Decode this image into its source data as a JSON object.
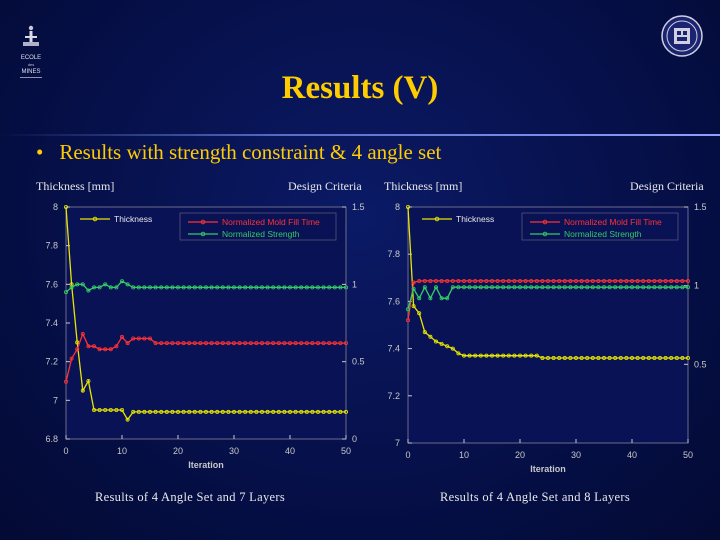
{
  "slide": {
    "title": "Results (V)",
    "bullet_marker": "•",
    "bullet_text": "Results with strength constraint & 4 angle set",
    "logo_text": [
      "ECOLE",
      "des",
      "MINES"
    ],
    "colors": {
      "background": "#06104a",
      "title": "#ffcc00",
      "text": "#e8e8e8"
    }
  },
  "chart_data": [
    {
      "type": "line",
      "caption": "Results of 4 Angle Set and 7 Layers",
      "left_axis_title": "Thickness [mm]",
      "right_axis_title": "Design Criteria",
      "xlabel": "Iteration",
      "xlim": [
        0,
        50
      ],
      "xticks": [
        "0",
        "10",
        "20",
        "30",
        "40",
        "50"
      ],
      "ylim": [
        6.8,
        8
      ],
      "yticks": [
        "8",
        "7.8",
        "7.6",
        "7.4",
        "7.2",
        "7",
        "6.8"
      ],
      "y2lim": [
        0,
        1.5
      ],
      "y2ticks": [
        "1.5",
        "1",
        "0.5",
        "0"
      ],
      "legend": [
        "Thickness",
        "Normalized Mold Fill Time",
        "Normalized Strength"
      ],
      "series": [
        {
          "name": "Thickness",
          "axis": "left",
          "color": "#e6e600",
          "x": [
            0,
            1,
            2,
            3,
            4,
            5,
            6,
            7,
            8,
            9,
            10,
            11,
            12,
            13,
            14,
            15,
            16,
            17,
            18,
            19,
            20,
            21,
            22,
            23,
            24,
            25,
            26,
            27,
            28,
            29,
            30,
            31,
            32,
            33,
            34,
            35,
            36,
            37,
            38,
            39,
            40,
            41,
            42,
            43,
            44,
            45,
            46,
            47,
            48,
            49,
            50
          ],
          "y": [
            8.0,
            7.6,
            7.3,
            7.05,
            7.1,
            6.95,
            6.95,
            6.95,
            6.95,
            6.95,
            6.95,
            6.9,
            6.94,
            6.94,
            6.94,
            6.94,
            6.94,
            6.94,
            6.94,
            6.94,
            6.94,
            6.94,
            6.94,
            6.94,
            6.94,
            6.94,
            6.94,
            6.94,
            6.94,
            6.94,
            6.94,
            6.94,
            6.94,
            6.94,
            6.94,
            6.94,
            6.94,
            6.94,
            6.94,
            6.94,
            6.94,
            6.94,
            6.94,
            6.94,
            6.94,
            6.94,
            6.94,
            6.94,
            6.94,
            6.94,
            6.94
          ]
        },
        {
          "name": "Normalized Mold Fill Time",
          "axis": "right",
          "color": "#ff3333",
          "x": [
            0,
            1,
            2,
            3,
            4,
            5,
            6,
            7,
            8,
            9,
            10,
            11,
            12,
            13,
            14,
            15,
            16,
            17,
            18,
            19,
            20,
            21,
            22,
            23,
            24,
            25,
            26,
            27,
            28,
            29,
            30,
            31,
            32,
            33,
            34,
            35,
            36,
            37,
            38,
            39,
            40,
            41,
            42,
            43,
            44,
            45,
            46,
            47,
            48,
            49,
            50
          ],
          "y": [
            0.37,
            0.52,
            0.58,
            0.68,
            0.6,
            0.6,
            0.58,
            0.58,
            0.58,
            0.6,
            0.66,
            0.62,
            0.65,
            0.65,
            0.65,
            0.65,
            0.62,
            0.62,
            0.62,
            0.62,
            0.62,
            0.62,
            0.62,
            0.62,
            0.62,
            0.62,
            0.62,
            0.62,
            0.62,
            0.62,
            0.62,
            0.62,
            0.62,
            0.62,
            0.62,
            0.62,
            0.62,
            0.62,
            0.62,
            0.62,
            0.62,
            0.62,
            0.62,
            0.62,
            0.62,
            0.62,
            0.62,
            0.62,
            0.62,
            0.62,
            0.62
          ]
        },
        {
          "name": "Normalized Strength",
          "axis": "right",
          "color": "#33cc66",
          "x": [
            0,
            1,
            2,
            3,
            4,
            5,
            6,
            7,
            8,
            9,
            10,
            11,
            12,
            13,
            14,
            15,
            16,
            17,
            18,
            19,
            20,
            21,
            22,
            23,
            24,
            25,
            26,
            27,
            28,
            29,
            30,
            31,
            32,
            33,
            34,
            35,
            36,
            37,
            38,
            39,
            40,
            41,
            42,
            43,
            44,
            45,
            46,
            47,
            48,
            49,
            50
          ],
          "y": [
            0.95,
            0.98,
            1.0,
            1.0,
            0.96,
            0.98,
            0.98,
            1.0,
            0.98,
            0.98,
            1.02,
            1.0,
            0.98,
            0.98,
            0.98,
            0.98,
            0.98,
            0.98,
            0.98,
            0.98,
            0.98,
            0.98,
            0.98,
            0.98,
            0.98,
            0.98,
            0.98,
            0.98,
            0.98,
            0.98,
            0.98,
            0.98,
            0.98,
            0.98,
            0.98,
            0.98,
            0.98,
            0.98,
            0.98,
            0.98,
            0.98,
            0.98,
            0.98,
            0.98,
            0.98,
            0.98,
            0.98,
            0.98,
            0.98,
            0.98,
            0.98
          ]
        }
      ]
    },
    {
      "type": "line",
      "caption": "Results of 4 Angle Set and 8 Layers",
      "left_axis_title": "Thickness [mm]",
      "right_axis_title": "Design Criteria",
      "xlabel": "Iteration",
      "xlim": [
        0,
        50
      ],
      "xticks": [
        "0",
        "10",
        "20",
        "30",
        "40",
        "50"
      ],
      "ylim": [
        7,
        8
      ],
      "yticks": [
        "8",
        "7.8",
        "7.6",
        "7.4",
        "7.2",
        "7"
      ],
      "y2lim": [
        0,
        1.5
      ],
      "y2ticks": [
        "1.5",
        "1",
        "0.5"
      ],
      "legend": [
        "Thickness",
        "Normalized Mold Fill Time",
        "Normalized Strength"
      ],
      "series": [
        {
          "name": "Thickness",
          "axis": "left",
          "color": "#e6e600",
          "x": [
            0,
            1,
            2,
            3,
            4,
            5,
            6,
            7,
            8,
            9,
            10,
            11,
            12,
            13,
            14,
            15,
            16,
            17,
            18,
            19,
            20,
            21,
            22,
            23,
            24,
            25,
            26,
            27,
            28,
            29,
            30,
            31,
            32,
            33,
            34,
            35,
            36,
            37,
            38,
            39,
            40,
            41,
            42,
            43,
            44,
            45,
            46,
            47,
            48,
            49,
            50
          ],
          "y": [
            8.0,
            7.58,
            7.55,
            7.47,
            7.45,
            7.43,
            7.42,
            7.41,
            7.4,
            7.38,
            7.37,
            7.37,
            7.37,
            7.37,
            7.37,
            7.37,
            7.37,
            7.37,
            7.37,
            7.37,
            7.37,
            7.37,
            7.37,
            7.37,
            7.36,
            7.36,
            7.36,
            7.36,
            7.36,
            7.36,
            7.36,
            7.36,
            7.36,
            7.36,
            7.36,
            7.36,
            7.36,
            7.36,
            7.36,
            7.36,
            7.36,
            7.36,
            7.36,
            7.36,
            7.36,
            7.36,
            7.36,
            7.36,
            7.36,
            7.36,
            7.36
          ]
        },
        {
          "name": "Normalized Mold Fill Time",
          "axis": "right",
          "color": "#ff3333",
          "x": [
            0,
            1,
            2,
            3,
            4,
            5,
            6,
            7,
            8,
            9,
            10,
            11,
            12,
            13,
            14,
            15,
            16,
            17,
            18,
            19,
            20,
            21,
            22,
            23,
            24,
            25,
            26,
            27,
            28,
            29,
            30,
            31,
            32,
            33,
            34,
            35,
            36,
            37,
            38,
            39,
            40,
            41,
            42,
            43,
            44,
            45,
            46,
            47,
            48,
            49,
            50
          ],
          "y": [
            0.78,
            1.02,
            1.03,
            1.03,
            1.03,
            1.03,
            1.03,
            1.03,
            1.03,
            1.03,
            1.03,
            1.03,
            1.03,
            1.03,
            1.03,
            1.03,
            1.03,
            1.03,
            1.03,
            1.03,
            1.03,
            1.03,
            1.03,
            1.03,
            1.03,
            1.03,
            1.03,
            1.03,
            1.03,
            1.03,
            1.03,
            1.03,
            1.03,
            1.03,
            1.03,
            1.03,
            1.03,
            1.03,
            1.03,
            1.03,
            1.03,
            1.03,
            1.03,
            1.03,
            1.03,
            1.03,
            1.03,
            1.03,
            1.03,
            1.03,
            1.03
          ]
        },
        {
          "name": "Normalized Strength",
          "axis": "right",
          "color": "#33cc66",
          "x": [
            0,
            1,
            2,
            3,
            4,
            5,
            6,
            7,
            8,
            9,
            10,
            11,
            12,
            13,
            14,
            15,
            16,
            17,
            18,
            19,
            20,
            21,
            22,
            23,
            24,
            25,
            26,
            27,
            28,
            29,
            30,
            31,
            32,
            33,
            34,
            35,
            36,
            37,
            38,
            39,
            40,
            41,
            42,
            43,
            44,
            45,
            46,
            47,
            48,
            49,
            50
          ],
          "y": [
            0.85,
            0.98,
            0.92,
            0.99,
            0.92,
            0.99,
            0.92,
            0.92,
            0.99,
            0.99,
            0.99,
            0.99,
            0.99,
            0.99,
            0.99,
            0.99,
            0.99,
            0.99,
            0.99,
            0.99,
            0.99,
            0.99,
            0.99,
            0.99,
            0.99,
            0.99,
            0.99,
            0.99,
            0.99,
            0.99,
            0.99,
            0.99,
            0.99,
            0.99,
            0.99,
            0.99,
            0.99,
            0.99,
            0.99,
            0.99,
            0.99,
            0.99,
            0.99,
            0.99,
            0.99,
            0.99,
            0.99,
            0.99,
            0.99,
            0.99,
            0.99
          ]
        }
      ]
    }
  ]
}
